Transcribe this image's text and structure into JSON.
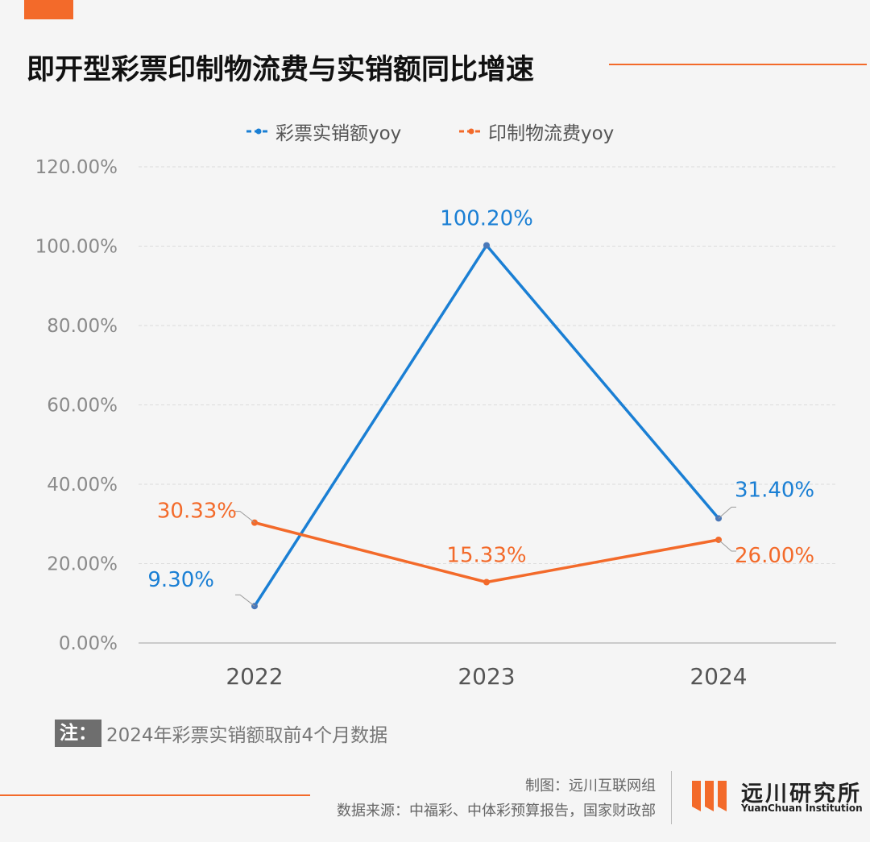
{
  "title": "即开型彩票印制物流费与实销额同比增速",
  "note": {
    "tag": "注：",
    "text": "2024年彩票实销额取前4个月数据"
  },
  "credits": {
    "made_by": "制图：远川互联网组",
    "source": "数据来源：中福彩、中体彩预算报告，国家财政部"
  },
  "logo": {
    "cn": "远川研究所",
    "en": "YuanChuan Institution"
  },
  "colors": {
    "accent": "#f36a2a",
    "blue_series": "#1a7fd4",
    "orange_series": "#f36a2a"
  },
  "chart_data": {
    "type": "line",
    "categories": [
      "2022",
      "2023",
      "2024"
    ],
    "series": [
      {
        "name": "彩票实销额yoy",
        "values": [
          9.3,
          100.2,
          31.4
        ],
        "labels": [
          "9.30%",
          "100.20%",
          "31.40%"
        ]
      },
      {
        "name": "印制物流费yoy",
        "values": [
          30.33,
          15.33,
          26.0
        ],
        "labels": [
          "30.33%",
          "15.33%",
          "26.00%"
        ]
      }
    ],
    "ylim": [
      0,
      120
    ],
    "yticks": [
      "0.00%",
      "20.00%",
      "40.00%",
      "60.00%",
      "80.00%",
      "100.00%",
      "120.00%"
    ],
    "grid": true,
    "legend": "top-center"
  }
}
